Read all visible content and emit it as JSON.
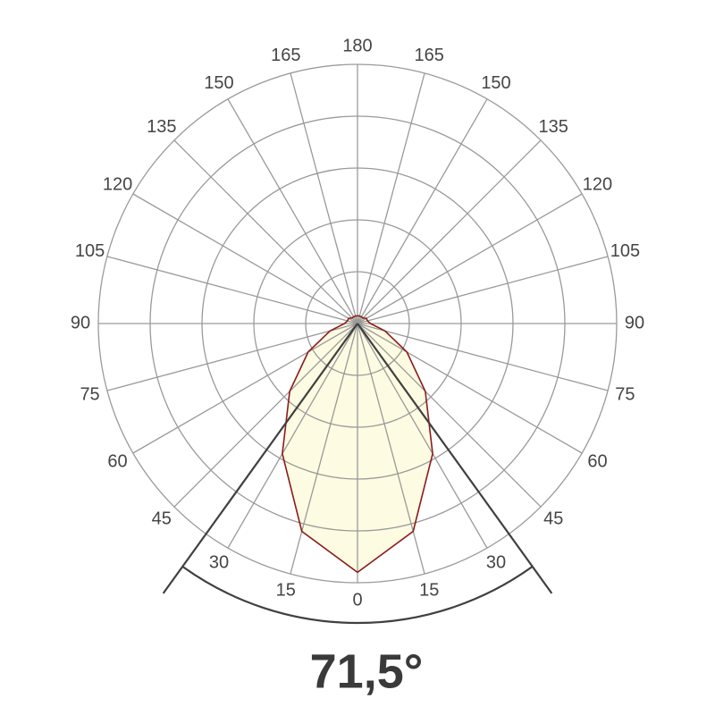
{
  "chart_data": {
    "type": "polar",
    "angles": [
      0,
      15,
      30,
      45,
      60,
      75,
      90,
      105,
      120,
      135,
      150,
      165,
      180
    ],
    "values": [
      96,
      83,
      58,
      37,
      22,
      11,
      5,
      4,
      4,
      3,
      3,
      3,
      3
    ],
    "rlim": [
      0,
      100
    ],
    "rticks": [
      20,
      40,
      60,
      80,
      100
    ],
    "angle_ticks": [
      0,
      15,
      30,
      45,
      60,
      75,
      90,
      105,
      120,
      135,
      150,
      165,
      180
    ],
    "fill": "#fdfbe2",
    "color": "#8b1c1c",
    "grid_color": "#9a9a9a",
    "beam_angle": 71.5,
    "beam_label": "71,5°",
    "beam_color": "#404040"
  }
}
